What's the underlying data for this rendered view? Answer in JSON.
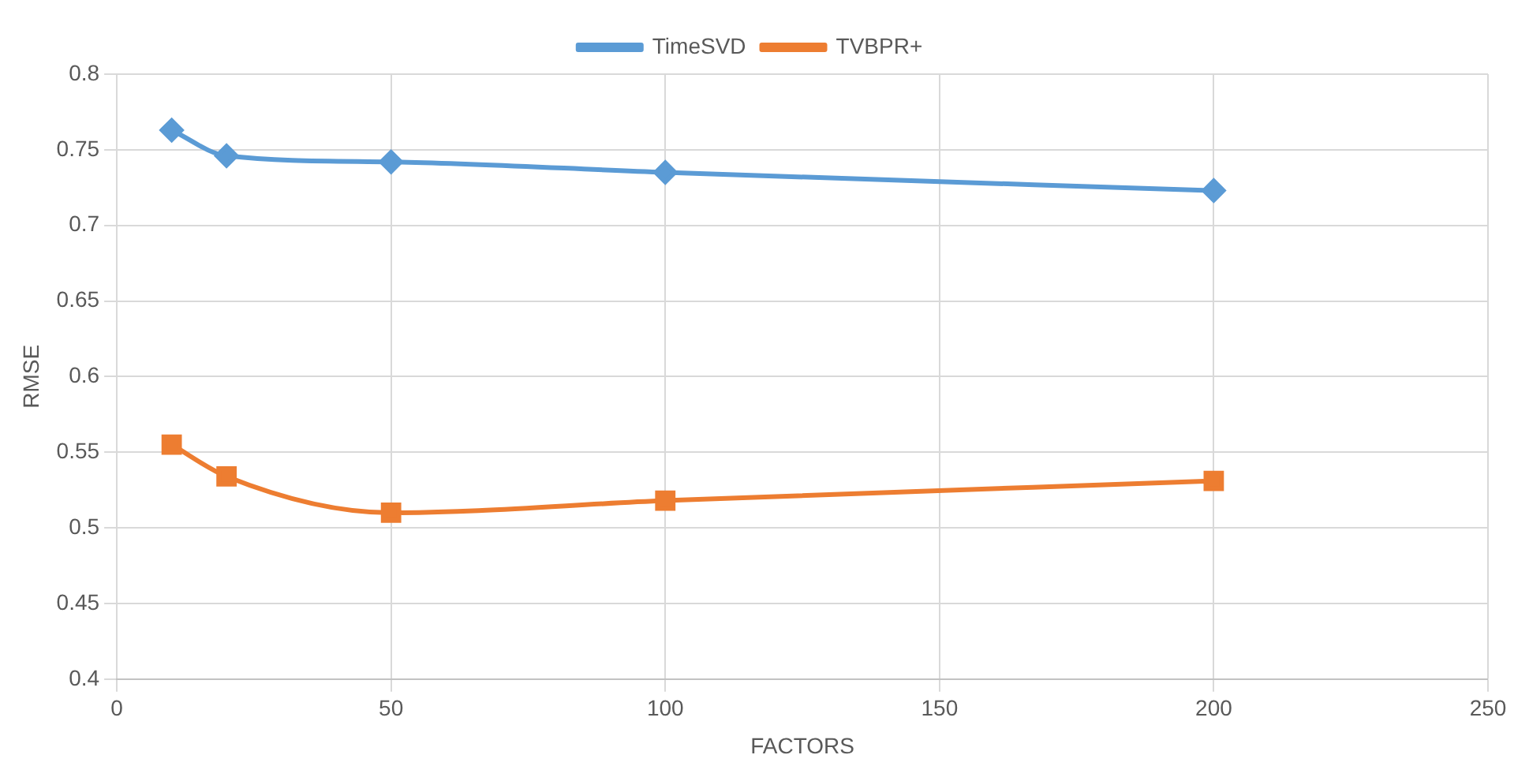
{
  "chart_data": {
    "type": "line",
    "xlabel": "FACTORS",
    "ylabel": "RMSE",
    "x": [
      10,
      20,
      50,
      100,
      200
    ],
    "series": [
      {
        "name": "TimeSVD",
        "color": "#5b9bd5",
        "marker": "diamond",
        "values": [
          0.763,
          0.746,
          0.742,
          0.735,
          0.723
        ]
      },
      {
        "name": "TVBPR+",
        "color": "#ed7d31",
        "marker": "square",
        "values": [
          0.555,
          0.534,
          0.51,
          0.518,
          0.531
        ]
      }
    ],
    "xlim": [
      0,
      250
    ],
    "xticks": [
      0,
      50,
      100,
      150,
      200,
      250
    ],
    "ylim": [
      0.4,
      0.8
    ],
    "yticks": [
      0.4,
      0.45,
      0.5,
      0.55,
      0.6,
      0.65,
      0.7,
      0.75,
      0.8
    ],
    "grid": true,
    "legend": "top"
  }
}
